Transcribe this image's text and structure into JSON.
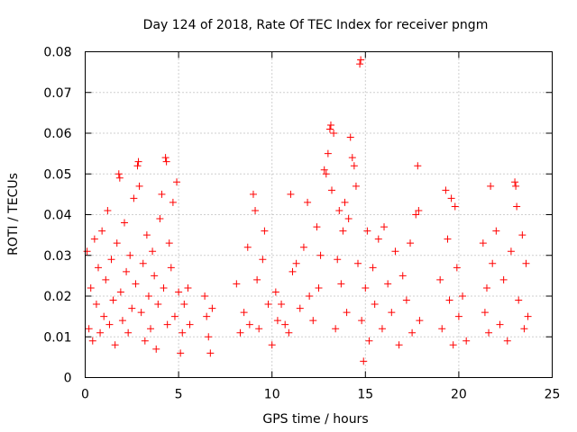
{
  "chart_data": {
    "type": "scatter",
    "title": "Day 124 of 2018, Rate Of TEC Index for receiver pngm",
    "xlabel": "GPS time / hours",
    "ylabel": "ROTI / TECUs",
    "xlim": [
      0,
      25
    ],
    "ylim": [
      0,
      0.08
    ],
    "x_ticks": [
      0,
      5,
      10,
      15,
      20,
      25
    ],
    "y_ticks": [
      0,
      0.01,
      0.02,
      0.03,
      0.04,
      0.05,
      0.06,
      0.07,
      0.08
    ],
    "x_tick_labels": [
      "0",
      "5",
      "10",
      "15",
      "20",
      "25"
    ],
    "y_tick_labels": [
      "0",
      "0.01",
      "0.02",
      "0.03",
      "0.04",
      "0.05",
      "0.06",
      "0.07",
      "0.08"
    ],
    "grid": true,
    "marker": "+",
    "series_color": "#ff0000",
    "series": [
      {
        "name": "ROTI",
        "points": [
          [
            0.1,
            0.031
          ],
          [
            0.2,
            0.012
          ],
          [
            0.3,
            0.022
          ],
          [
            0.4,
            0.009
          ],
          [
            0.5,
            0.034
          ],
          [
            0.6,
            0.018
          ],
          [
            0.7,
            0.027
          ],
          [
            0.8,
            0.011
          ],
          [
            0.9,
            0.036
          ],
          [
            1.0,
            0.015
          ],
          [
            1.1,
            0.024
          ],
          [
            1.2,
            0.041
          ],
          [
            1.3,
            0.013
          ],
          [
            1.4,
            0.029
          ],
          [
            1.5,
            0.019
          ],
          [
            1.6,
            0.008
          ],
          [
            1.7,
            0.033
          ],
          [
            1.8,
            0.05
          ],
          [
            1.85,
            0.049
          ],
          [
            1.9,
            0.021
          ],
          [
            2.0,
            0.014
          ],
          [
            2.1,
            0.038
          ],
          [
            2.2,
            0.026
          ],
          [
            2.3,
            0.011
          ],
          [
            2.4,
            0.03
          ],
          [
            2.5,
            0.017
          ],
          [
            2.6,
            0.044
          ],
          [
            2.7,
            0.023
          ],
          [
            2.8,
            0.052
          ],
          [
            2.85,
            0.053
          ],
          [
            2.9,
            0.047
          ],
          [
            3.0,
            0.016
          ],
          [
            3.1,
            0.028
          ],
          [
            3.2,
            0.009
          ],
          [
            3.3,
            0.035
          ],
          [
            3.4,
            0.02
          ],
          [
            3.5,
            0.012
          ],
          [
            3.6,
            0.031
          ],
          [
            3.7,
            0.025
          ],
          [
            3.8,
            0.007
          ],
          [
            3.9,
            0.018
          ],
          [
            4.0,
            0.039
          ],
          [
            4.1,
            0.045
          ],
          [
            4.2,
            0.022
          ],
          [
            4.3,
            0.054
          ],
          [
            4.35,
            0.053
          ],
          [
            4.4,
            0.013
          ],
          [
            4.5,
            0.033
          ],
          [
            4.6,
            0.027
          ],
          [
            4.7,
            0.043
          ],
          [
            4.8,
            0.015
          ],
          [
            4.9,
            0.048
          ],
          [
            5.0,
            0.021
          ],
          [
            5.1,
            0.006
          ],
          [
            5.2,
            0.011
          ],
          [
            5.3,
            0.018
          ],
          [
            5.5,
            0.022
          ],
          [
            5.6,
            0.013
          ],
          [
            6.4,
            0.02
          ],
          [
            6.5,
            0.015
          ],
          [
            6.6,
            0.01
          ],
          [
            6.7,
            0.006
          ],
          [
            6.8,
            0.017
          ],
          [
            8.1,
            0.023
          ],
          [
            8.3,
            0.011
          ],
          [
            8.5,
            0.016
          ],
          [
            8.7,
            0.032
          ],
          [
            8.8,
            0.013
          ],
          [
            9.0,
            0.045
          ],
          [
            9.1,
            0.041
          ],
          [
            9.2,
            0.024
          ],
          [
            9.3,
            0.012
          ],
          [
            9.5,
            0.029
          ],
          [
            9.6,
            0.036
          ],
          [
            9.8,
            0.018
          ],
          [
            10.0,
            0.008
          ],
          [
            10.2,
            0.021
          ],
          [
            10.3,
            0.014
          ],
          [
            10.5,
            0.018
          ],
          [
            10.7,
            0.013
          ],
          [
            10.9,
            0.011
          ],
          [
            11.0,
            0.045
          ],
          [
            11.1,
            0.026
          ],
          [
            11.3,
            0.028
          ],
          [
            11.5,
            0.017
          ],
          [
            11.7,
            0.032
          ],
          [
            11.9,
            0.043
          ],
          [
            12.0,
            0.02
          ],
          [
            12.2,
            0.014
          ],
          [
            12.4,
            0.037
          ],
          [
            12.5,
            0.022
          ],
          [
            12.6,
            0.03
          ],
          [
            12.8,
            0.051
          ],
          [
            12.9,
            0.05
          ],
          [
            13.0,
            0.055
          ],
          [
            13.1,
            0.061
          ],
          [
            13.15,
            0.062
          ],
          [
            13.2,
            0.046
          ],
          [
            13.3,
            0.06
          ],
          [
            13.4,
            0.012
          ],
          [
            13.5,
            0.029
          ],
          [
            13.6,
            0.041
          ],
          [
            13.7,
            0.023
          ],
          [
            13.8,
            0.036
          ],
          [
            13.9,
            0.043
          ],
          [
            14.0,
            0.016
          ],
          [
            14.1,
            0.039
          ],
          [
            14.2,
            0.059
          ],
          [
            14.3,
            0.054
          ],
          [
            14.4,
            0.052
          ],
          [
            14.5,
            0.047
          ],
          [
            14.6,
            0.028
          ],
          [
            14.7,
            0.077
          ],
          [
            14.75,
            0.078
          ],
          [
            14.8,
            0.014
          ],
          [
            14.9,
            0.004
          ],
          [
            15.0,
            0.022
          ],
          [
            15.1,
            0.036
          ],
          [
            15.2,
            0.009
          ],
          [
            15.4,
            0.027
          ],
          [
            15.5,
            0.018
          ],
          [
            15.7,
            0.034
          ],
          [
            15.9,
            0.012
          ],
          [
            16.0,
            0.037
          ],
          [
            16.2,
            0.023
          ],
          [
            16.4,
            0.016
          ],
          [
            16.6,
            0.031
          ],
          [
            16.8,
            0.008
          ],
          [
            17.0,
            0.025
          ],
          [
            17.2,
            0.019
          ],
          [
            17.4,
            0.033
          ],
          [
            17.5,
            0.011
          ],
          [
            17.7,
            0.04
          ],
          [
            17.8,
            0.052
          ],
          [
            17.85,
            0.041
          ],
          [
            17.9,
            0.014
          ],
          [
            19.0,
            0.024
          ],
          [
            19.1,
            0.012
          ],
          [
            19.3,
            0.046
          ],
          [
            19.4,
            0.034
          ],
          [
            19.5,
            0.019
          ],
          [
            19.6,
            0.044
          ],
          [
            19.7,
            0.008
          ],
          [
            19.8,
            0.042
          ],
          [
            19.9,
            0.027
          ],
          [
            20.0,
            0.015
          ],
          [
            20.2,
            0.02
          ],
          [
            20.4,
            0.009
          ],
          [
            21.3,
            0.033
          ],
          [
            21.4,
            0.016
          ],
          [
            21.5,
            0.022
          ],
          [
            21.6,
            0.011
          ],
          [
            21.7,
            0.047
          ],
          [
            21.8,
            0.028
          ],
          [
            22.0,
            0.036
          ],
          [
            22.2,
            0.013
          ],
          [
            22.4,
            0.024
          ],
          [
            22.6,
            0.009
          ],
          [
            22.8,
            0.031
          ],
          [
            23.0,
            0.048
          ],
          [
            23.05,
            0.047
          ],
          [
            23.1,
            0.042
          ],
          [
            23.2,
            0.019
          ],
          [
            23.4,
            0.035
          ],
          [
            23.5,
            0.012
          ],
          [
            23.6,
            0.028
          ],
          [
            23.7,
            0.015
          ]
        ]
      }
    ]
  }
}
